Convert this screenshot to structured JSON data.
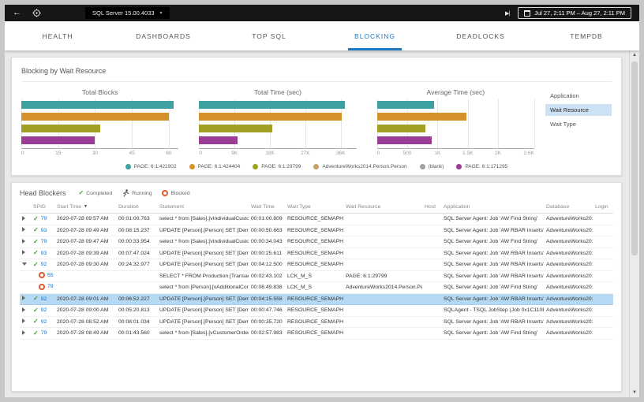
{
  "topbar": {
    "server_selector": "SQL Server 15.00.4033",
    "date_range": "Jul 27, 2:11 PM – Aug 27, 2:11 PM"
  },
  "icons": {
    "back": "←",
    "skip_to_end": "▶|",
    "chevron_down": "▾",
    "sort_desc": "▼",
    "completed_check": "✓",
    "scroll_up": "▲",
    "scroll_down": "▼"
  },
  "colors": {
    "accent": "#1e78c2",
    "completed": "#3f9c35",
    "blocked": "#dd5b2d",
    "selected_row": "#b5d8f3"
  },
  "tabs": [
    {
      "label": "HEALTH",
      "active": false
    },
    {
      "label": "DASHBOARDS",
      "active": false
    },
    {
      "label": "TOP SQL",
      "active": false
    },
    {
      "label": "BLOCKING",
      "active": true
    },
    {
      "label": "DEADLOCKS",
      "active": false
    },
    {
      "label": "TEMPDB",
      "active": false
    }
  ],
  "blocking_section": {
    "title": "Blocking by Wait Resource"
  },
  "chart_controls": {
    "items": [
      {
        "label": "Application",
        "selected": false
      },
      {
        "label": "Wait Resource",
        "selected": true
      },
      {
        "label": "Wait Type",
        "selected": false
      }
    ]
  },
  "chart_data": {
    "type": "bar",
    "orientation": "horizontal",
    "grid": true,
    "legend_position": "bottom",
    "legend": [
      {
        "label": "PAGE: 6:1:421902",
        "color": "#3fa0a0"
      },
      {
        "label": "PAGE: 6:1:424404",
        "color": "#d5912c"
      },
      {
        "label": "PAGE: 6:1:29799",
        "color": "#a0a024"
      },
      {
        "label": "AdventureWorks2014.Person.Person",
        "color": "#c9a063"
      },
      {
        "label": "(blank)",
        "color": "#a0a0a0"
      },
      {
        "label": "PAGE: 6:1:171295",
        "color": "#9c3d95"
      }
    ],
    "charts": [
      {
        "title": "Total Blocks",
        "xlim": [
          0,
          64
        ],
        "ticks": [
          {
            "label": "0",
            "value": 0
          },
          {
            "label": "15",
            "value": 15
          },
          {
            "label": "30",
            "value": 30
          },
          {
            "label": "45",
            "value": 45
          },
          {
            "label": "60",
            "value": 60
          }
        ],
        "bars": [
          {
            "category": "PAGE: 6:1:421902",
            "value": 62
          },
          {
            "category": "PAGE: 6:1:424404",
            "value": 60
          },
          {
            "category": "PAGE: 6:1:29799",
            "value": 32
          },
          {
            "category": "PAGE: 6:1:171295",
            "value": 30
          }
        ]
      },
      {
        "title": "Total Time (sec)",
        "xlim": [
          0,
          40000
        ],
        "ticks": [
          {
            "label": "0",
            "value": 0
          },
          {
            "label": "9K",
            "value": 9000
          },
          {
            "label": "18K",
            "value": 18000
          },
          {
            "label": "27K",
            "value": 27000
          },
          {
            "label": "36K",
            "value": 36000
          }
        ],
        "bars": [
          {
            "category": "PAGE: 6:1:421902",
            "value": 37000
          },
          {
            "category": "PAGE: 6:1:424404",
            "value": 36200
          },
          {
            "category": "PAGE: 6:1:29799",
            "value": 18500
          },
          {
            "category": "PAGE: 6:1:171295",
            "value": 9800
          }
        ]
      },
      {
        "title": "Average Time (sec)",
        "xlim": [
          0,
          2600
        ],
        "ticks": [
          {
            "label": "0",
            "value": 0
          },
          {
            "label": "500",
            "value": 500
          },
          {
            "label": "1K",
            "value": 1000
          },
          {
            "label": "1.5K",
            "value": 1500
          },
          {
            "label": "2K",
            "value": 2000
          },
          {
            "label": "2.6K",
            "value": 2600
          }
        ],
        "bars": [
          {
            "category": "PAGE: 6:1:421902",
            "value": 950
          },
          {
            "category": "PAGE: 6:1:424404",
            "value": 1480
          },
          {
            "category": "PAGE: 6:1:29799",
            "value": 800
          },
          {
            "category": "PAGE: 6:1:171295",
            "value": 900
          }
        ]
      }
    ]
  },
  "head_blockers": {
    "title": "Head Blockers",
    "status_legend": [
      {
        "status": "completed",
        "label": "Completed"
      },
      {
        "status": "running",
        "label": "Running"
      },
      {
        "status": "blocked",
        "label": "Blocked"
      }
    ],
    "columns": [
      {
        "key": "spid",
        "label": "SPID"
      },
      {
        "key": "start_time",
        "label": "Start Time",
        "sorted": "desc"
      },
      {
        "key": "duration",
        "label": "Duration"
      },
      {
        "key": "statement",
        "label": "Statement"
      },
      {
        "key": "wait_time",
        "label": "Wait Time"
      },
      {
        "key": "wait_type",
        "label": "Wait Type"
      },
      {
        "key": "wait_resource",
        "label": "Wait Resource"
      },
      {
        "key": "host",
        "label": "Host"
      },
      {
        "key": "application",
        "label": "Application"
      },
      {
        "key": "database",
        "label": "Database"
      },
      {
        "key": "login",
        "label": "Login"
      }
    ],
    "rows": [
      {
        "expand": "collapsed",
        "status": "completed",
        "spid": "79",
        "start_time": "2020-07-28 09:57 AM",
        "duration": "00:01:00.763",
        "statement": "select * from [Sales].[vIndividualCustomer] with...",
        "wait_time": "00:01:00.809",
        "wait_type": "RESOURCE_SEMAPHORE",
        "wait_resource": "",
        "host": "",
        "application": "SQL Server Agent: Job 'AW Find String'",
        "database": "AdventureWorks2014",
        "login": "",
        "selected": false
      },
      {
        "expand": "collapsed",
        "status": "completed",
        "spid": "93",
        "start_time": "2020-07-28 09:49 AM",
        "duration": "00:08:15.237",
        "statement": "UPDATE [Person].[Person] SET [Demographic...",
        "wait_time": "00:00:50.663",
        "wait_type": "RESOURCE_SEMAPHORE",
        "wait_resource": "",
        "host": "",
        "application": "SQL Server Agent: Job 'AW RBAR Inserts'",
        "database": "AdventureWorks2014",
        "login": "",
        "selected": false
      },
      {
        "expand": "collapsed",
        "status": "completed",
        "spid": "79",
        "start_time": "2020-07-28 09:47 AM",
        "duration": "00:00:33.954",
        "statement": "select * from [Sales].[vIndividualCustomer] with...",
        "wait_time": "00:00:34.043",
        "wait_type": "RESOURCE_SEMAPHORE",
        "wait_resource": "",
        "host": "",
        "application": "SQL Server Agent: Job 'AW Find String'",
        "database": "AdventureWorks2014",
        "login": "",
        "selected": false
      },
      {
        "expand": "collapsed",
        "status": "completed",
        "spid": "93",
        "start_time": "2020-07-28 09:39 AM",
        "duration": "00:07:47.024",
        "statement": "UPDATE [Person].[Person] SET [Demographic...",
        "wait_time": "00:00:25.611",
        "wait_type": "RESOURCE_SEMAPHORE",
        "wait_resource": "",
        "host": "",
        "application": "SQL Server Agent: Job 'AW RBAR Inserts'",
        "database": "AdventureWorks2014",
        "login": "",
        "selected": false
      },
      {
        "expand": "expanded",
        "status": "completed",
        "spid": "92",
        "start_time": "2020-07-28 09:30 AM",
        "duration": "00:24:32.977",
        "statement": "UPDATE [Person].[Person] SET [Demographic...",
        "wait_time": "00:04:12.500",
        "wait_type": "RESOURCE_SEMAPHORE",
        "wait_resource": "",
        "host": "",
        "application": "SQL Server Agent: Job 'AW RBAR Inserts'",
        "database": "AdventureWorks2014",
        "login": "",
        "selected": false
      },
      {
        "expand": "child",
        "status": "blocked",
        "spid": "55",
        "start_time": "",
        "duration": "",
        "statement": "SELECT * FROM Production.[TransactionHistory]...",
        "wait_time": "00:02:43.102",
        "wait_type": "LCK_M_S",
        "wait_resource": "PAGE: 6:1:29799",
        "host": "",
        "application": "SQL Server Agent: Job 'AW RBAR Inserts'",
        "database": "AdventureWorks2014",
        "login": "",
        "selected": false
      },
      {
        "expand": "child",
        "status": "blocked",
        "spid": "79",
        "start_time": "",
        "duration": "",
        "statement": "select * from [Person].[vAdditionalContactInfo]...",
        "wait_time": "00:06:49.838",
        "wait_type": "LCK_M_S",
        "wait_resource": "AdventureWorks2014.Person.Person",
        "host": "",
        "application": "SQL Server Agent: Job 'AW Find String'",
        "database": "AdventureWorks2014",
        "login": "",
        "selected": false
      },
      {
        "expand": "collapsed",
        "status": "completed",
        "spid": "92",
        "start_time": "2020-07-28 09:01 AM",
        "duration": "00:06:52.227",
        "statement": "UPDATE [Person].[Person] SET [Demographic...",
        "wait_time": "00:04:15.558",
        "wait_type": "RESOURCE_SEMAPHORE",
        "wait_resource": "",
        "host": "",
        "application": "SQL Server Agent: Job 'AW RBAR Inserts'",
        "database": "AdventureWorks2014",
        "login": "",
        "selected": true
      },
      {
        "expand": "collapsed",
        "status": "completed",
        "spid": "92",
        "start_time": "2020-07-28 09:00 AM",
        "duration": "00:05:20.813",
        "statement": "UPDATE [Person].[Person] SET [Demographic...",
        "wait_time": "00:00:47.746",
        "wait_type": "RESOURCE_SEMAPHORE",
        "wait_resource": "",
        "host": "",
        "application": "SQLAgent - TSQL JobStep (Job 0x1C110B2D6...",
        "database": "AdventureWorks2014",
        "login": "",
        "selected": false
      },
      {
        "expand": "collapsed",
        "status": "completed",
        "spid": "92",
        "start_time": "2020-07-28 08:52 AM",
        "duration": "00:08:01.034",
        "statement": "UPDATE [Person].[Person] SET [Demographic...",
        "wait_time": "00:00:35.720",
        "wait_type": "RESOURCE_SEMAPHORE",
        "wait_resource": "",
        "host": "",
        "application": "SQL Server Agent: Job 'AW RBAR Inserts'",
        "database": "AdventureWorks2014",
        "login": "",
        "selected": false
      },
      {
        "expand": "collapsed",
        "status": "completed",
        "spid": "79",
        "start_time": "2020-07-28 08:49 AM",
        "duration": "00:01:43.560",
        "statement": "select * from [Sales].[vCustomerOrders] with(ta...",
        "wait_time": "00:02:57.983",
        "wait_type": "RESOURCE_SEMAPHORE",
        "wait_resource": "",
        "host": "",
        "application": "SQL Server Agent: Job 'AW Find String'",
        "database": "AdventureWorks2014",
        "login": "",
        "selected": false
      }
    ]
  }
}
